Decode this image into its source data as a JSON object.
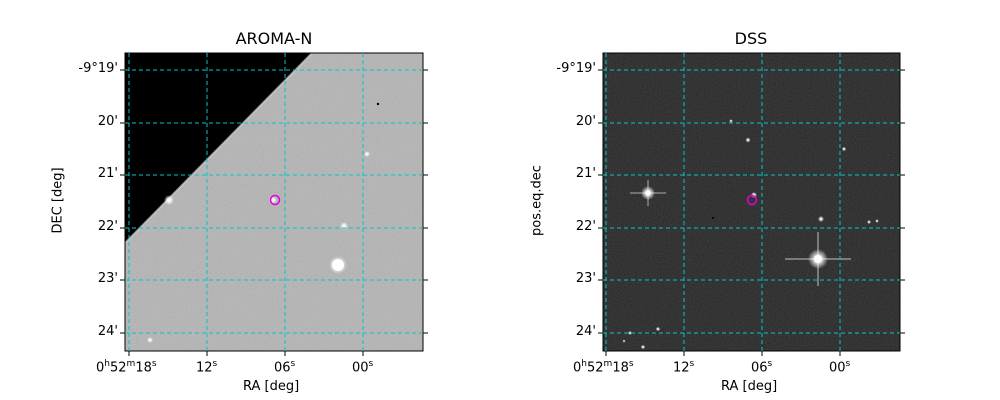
{
  "panels": [
    {
      "title": "AROMA-N",
      "xlabel": "RA [deg]",
      "ylabel": "DEC [deg]",
      "x_ticks": [
        {
          "base": "0",
          "h": "h",
          "m_val": "52",
          "m": "m",
          "s_val": "18",
          "s": "s"
        },
        {
          "base": "12",
          "s": "s"
        },
        {
          "base": "06",
          "s": "s"
        },
        {
          "base": "00",
          "s": "s"
        }
      ],
      "y_ticks": [
        "-9°19'",
        "20'",
        "21'",
        "22'",
        "23'",
        "24'"
      ]
    },
    {
      "title": "DSS",
      "xlabel": "RA [deg]",
      "ylabel": "pos.eq.dec",
      "x_ticks": [
        {
          "base": "0",
          "h": "h",
          "m_val": "52",
          "m": "m",
          "s_val": "18",
          "s": "s"
        },
        {
          "base": "12",
          "s": "s"
        },
        {
          "base": "06",
          "s": "s"
        },
        {
          "base": "00",
          "s": "s"
        }
      ],
      "y_ticks": [
        "-9°19'",
        "20'",
        "21'",
        "22'",
        "23'",
        "24'"
      ]
    }
  ],
  "colors": {
    "grid": "#00c8c8",
    "marker": "#e000e0",
    "aroma_bg": "#b4b4b4",
    "dss_bg": "#262626"
  }
}
